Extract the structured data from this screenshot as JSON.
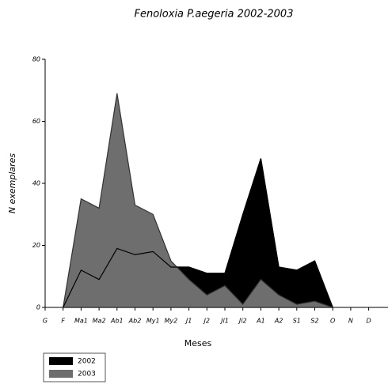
{
  "chart_data": {
    "type": "area",
    "title": "Fenoloxia P.aegeria 2002-2003",
    "x_label": "Meses",
    "y_label": "N exemplares",
    "categories": [
      "G",
      "F",
      "Ma1",
      "Ma2",
      "Ab1",
      "Ab2",
      "My1",
      "My2",
      "J1",
      "J2",
      "Jl1",
      "Jl2",
      "A1",
      "A2",
      "S1",
      "S2",
      "O",
      "N",
      "D"
    ],
    "series": [
      {
        "name": "2002",
        "color": "#000000",
        "values": [
          null,
          0,
          12,
          9,
          19,
          17,
          18,
          13,
          13,
          11,
          11,
          30,
          48,
          13,
          12,
          15,
          0,
          null,
          null
        ]
      },
      {
        "name": "2003",
        "color": "#6e6e6e",
        "values": [
          null,
          0,
          35,
          32,
          69,
          33,
          30,
          15,
          9,
          4,
          7,
          1,
          9,
          4,
          1,
          2,
          0,
          null,
          null
        ]
      }
    ],
    "ylim": [
      0,
      80
    ],
    "yticks": [
      0,
      20,
      40,
      60,
      80
    ],
    "legend": "bottom-left"
  }
}
